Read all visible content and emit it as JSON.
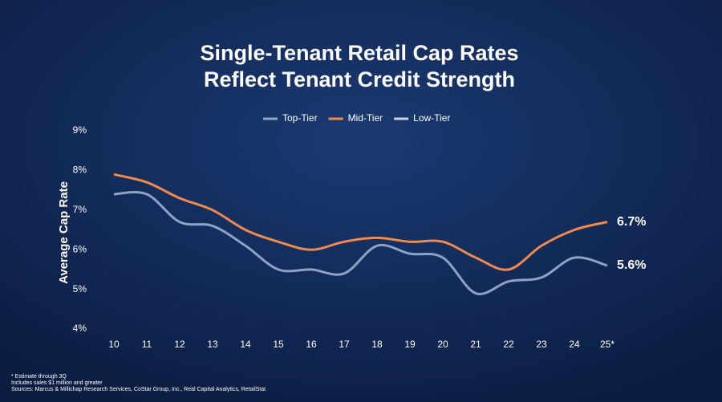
{
  "chart_data": {
    "type": "line",
    "title": [
      "Single-Tenant Retail Cap Rates",
      "Reflect Tenant Credit Strength"
    ],
    "y_label": "Average Cap Rate",
    "categories": [
      "10",
      "11",
      "12",
      "13",
      "14",
      "15",
      "16",
      "17",
      "18",
      "19",
      "20",
      "21",
      "22",
      "23",
      "24",
      "25*"
    ],
    "series": [
      {
        "name": "Top-Tier",
        "color": "#8ea2c6",
        "values": [
          7.4,
          7.4,
          6.7,
          6.6,
          6.1,
          5.5,
          5.5,
          5.4,
          6.1,
          5.9,
          5.8,
          4.9,
          5.2,
          5.3,
          5.8,
          5.6
        ],
        "value_labels": [
          null,
          null,
          null,
          null,
          null,
          null,
          null,
          null,
          null,
          null,
          null,
          null,
          null,
          null,
          null,
          "5.6%"
        ]
      },
      {
        "name": "Mid-Tier",
        "color": "#f28a4c",
        "values": [
          7.9,
          7.7,
          7.3,
          7.0,
          6.5,
          6.2,
          6.0,
          6.2,
          6.3,
          6.2,
          6.2,
          5.8,
          5.5,
          6.1,
          6.5,
          6.7
        ],
        "value_labels": [
          null,
          null,
          null,
          null,
          null,
          null,
          null,
          null,
          null,
          null,
          null,
          null,
          null,
          null,
          null,
          "6.7%"
        ]
      },
      {
        "name": "Low-Tier",
        "color": "#c9d3e8",
        "values": [
          null,
          null,
          null,
          null,
          null,
          null,
          null,
          null,
          null,
          null,
          null,
          null,
          null,
          null,
          null,
          null
        ]
      }
    ],
    "ylim": [
      4,
      9
    ],
    "yticks": [
      {
        "value": 4,
        "label": "4%"
      },
      {
        "value": 5,
        "label": "5%"
      },
      {
        "value": 6,
        "label": "6%"
      },
      {
        "value": 7,
        "label": "7%"
      },
      {
        "value": 8,
        "label": "8%"
      },
      {
        "value": 9,
        "label": "9%"
      }
    ],
    "grid": false,
    "legend": "top",
    "footnotes": [
      "* Estimate through 3Q",
      "Includes sales $1 million and greater",
      "Sources: Marcus & Millichap Research Services, CoStar Group, Inc., Real Capital Analytics, RetailStat"
    ]
  }
}
